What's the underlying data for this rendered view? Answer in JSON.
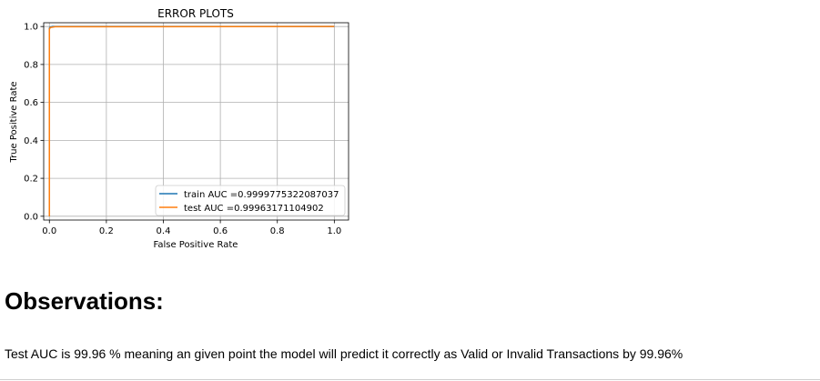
{
  "chart_data": {
    "type": "line",
    "title": "ERROR PLOTS",
    "xlabel": "False Positive Rate",
    "ylabel": "True Positive Rate",
    "xlim": [
      -0.02,
      1.05
    ],
    "ylim": [
      -0.02,
      1.02
    ],
    "xticks": [
      "0.0",
      "0.2",
      "0.4",
      "0.6",
      "0.8",
      "1.0"
    ],
    "yticks": [
      "0.0",
      "0.2",
      "0.4",
      "0.6",
      "0.8",
      "1.0"
    ],
    "grid": true,
    "legend_position": "lower-right",
    "series": [
      {
        "name": "train AUC =0.9999775322087037",
        "color": "#1f77b4",
        "x": [
          0.0,
          0.0,
          0.002,
          0.01,
          1.0
        ],
        "y": [
          0.0,
          0.99,
          0.997,
          1.0,
          1.0
        ]
      },
      {
        "name": "test AUC =0.99963171104902",
        "color": "#ff7f0e",
        "x": [
          0.0,
          0.0,
          0.003,
          0.02,
          1.0
        ],
        "y": [
          0.0,
          0.985,
          0.995,
          0.999,
          1.0
        ]
      }
    ]
  },
  "observations": {
    "heading": "Observations:",
    "text": "Test AUC is 99.96 % meaning an given point the model will predict it correctly as Valid or Invalid Transactions by 99.96%"
  }
}
